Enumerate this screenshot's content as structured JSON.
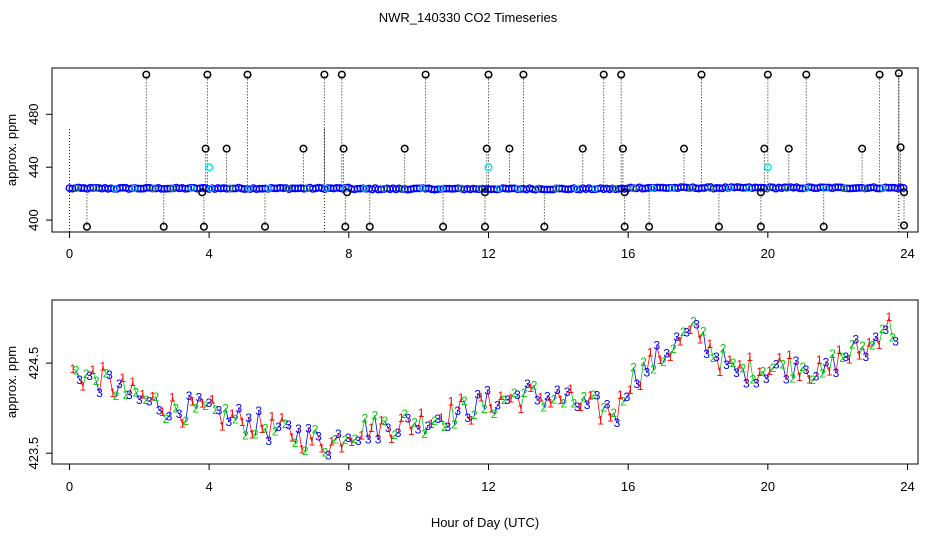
{
  "title": "NWR_140330  CO2 Timeseries",
  "colors": {
    "blue": "#0000ff",
    "cyan": "#00e5e5",
    "red": "#ff0000",
    "green": "#00cc00",
    "black": "#000000"
  },
  "chart_data": [
    {
      "type": "scatter",
      "name": "top-panel",
      "title": "NWR_140330  CO2 Timeseries",
      "xlabel": "",
      "ylabel": "approx. ppm",
      "xlim": [
        -0.5,
        24.3
      ],
      "ylim": [
        391,
        515
      ],
      "xticks": [
        "0",
        "4",
        "8",
        "12",
        "16",
        "20",
        "24"
      ],
      "yticks": [
        "400",
        "440",
        "480"
      ],
      "baseline_value": 424,
      "flag_points": [
        {
          "x": 0.5,
          "y": 395
        },
        {
          "x": 2.2,
          "y": 510
        },
        {
          "x": 2.7,
          "y": 395
        },
        {
          "x": 3.85,
          "y": 395
        },
        {
          "x": 3.9,
          "y": 454
        },
        {
          "x": 3.95,
          "y": 510
        },
        {
          "x": 4.5,
          "y": 454
        },
        {
          "x": 5.1,
          "y": 510
        },
        {
          "x": 5.6,
          "y": 395
        },
        {
          "x": 6.7,
          "y": 454
        },
        {
          "x": 7.3,
          "y": 510
        },
        {
          "x": 7.8,
          "y": 510
        },
        {
          "x": 7.85,
          "y": 454
        },
        {
          "x": 7.9,
          "y": 395
        },
        {
          "x": 8.6,
          "y": 395
        },
        {
          "x": 9.6,
          "y": 454
        },
        {
          "x": 10.2,
          "y": 510
        },
        {
          "x": 10.7,
          "y": 395
        },
        {
          "x": 11.9,
          "y": 395
        },
        {
          "x": 11.95,
          "y": 454
        },
        {
          "x": 12.0,
          "y": 510
        },
        {
          "x": 12.6,
          "y": 454
        },
        {
          "x": 13.0,
          "y": 510
        },
        {
          "x": 13.6,
          "y": 395
        },
        {
          "x": 14.7,
          "y": 454
        },
        {
          "x": 15.3,
          "y": 510
        },
        {
          "x": 15.8,
          "y": 510
        },
        {
          "x": 15.85,
          "y": 454
        },
        {
          "x": 15.9,
          "y": 395
        },
        {
          "x": 16.6,
          "y": 395
        },
        {
          "x": 17.6,
          "y": 454
        },
        {
          "x": 18.1,
          "y": 510
        },
        {
          "x": 18.6,
          "y": 395
        },
        {
          "x": 19.8,
          "y": 395
        },
        {
          "x": 19.9,
          "y": 454
        },
        {
          "x": 20.0,
          "y": 510
        },
        {
          "x": 20.6,
          "y": 454
        },
        {
          "x": 21.1,
          "y": 510
        },
        {
          "x": 21.6,
          "y": 395
        },
        {
          "x": 22.7,
          "y": 454
        },
        {
          "x": 23.2,
          "y": 510
        },
        {
          "x": 23.75,
          "y": 511
        },
        {
          "x": 23.8,
          "y": 455
        },
        {
          "x": 23.9,
          "y": 396
        },
        {
          "x": 3.8,
          "y": 421
        },
        {
          "x": 7.95,
          "y": 421
        },
        {
          "x": 11.9,
          "y": 421
        },
        {
          "x": 15.9,
          "y": 421
        },
        {
          "x": 19.8,
          "y": 421
        },
        {
          "x": 23.9,
          "y": 421
        }
      ],
      "spike_lines_to": [
        {
          "x": 0.0,
          "y": 470
        },
        {
          "x": 7.3,
          "y": 470
        },
        {
          "x": 23.75,
          "y": 511
        }
      ],
      "cyan_points": [
        {
          "x": 4.0,
          "y": 440
        },
        {
          "x": 12.0,
          "y": 440
        },
        {
          "x": 20.0,
          "y": 440
        }
      ]
    },
    {
      "type": "scatter",
      "name": "bottom-panel",
      "xlabel": "Hour of Day (UTC)",
      "ylabel": "approx. ppm",
      "xlim": [
        -0.5,
        24.3
      ],
      "ylim": [
        423.38,
        425.2
      ],
      "xticks": [
        "0",
        "4",
        "8",
        "12",
        "16",
        "20",
        "24"
      ],
      "yticks": [
        "423.5",
        "424.5"
      ],
      "series": [
        {
          "name": "1",
          "color": "#ff0000",
          "symbol": "1"
        },
        {
          "name": "2",
          "color": "#00cc00",
          "symbol": "2"
        },
        {
          "name": "3",
          "color": "#0000ff",
          "symbol": "3"
        }
      ],
      "trend": {
        "x": [
          0,
          1,
          2,
          3,
          4,
          5,
          6,
          7,
          7.5,
          8,
          9,
          10,
          11,
          12,
          13,
          14,
          15,
          15.7,
          16,
          17,
          17.5,
          18,
          18.5,
          19,
          20,
          21,
          21.6,
          22,
          23,
          23.3,
          23.8
        ],
        "y": [
          424.4,
          424.3,
          424.1,
          424.0,
          423.95,
          423.85,
          423.75,
          423.65,
          423.6,
          423.75,
          423.8,
          423.85,
          423.95,
          424.05,
          424.15,
          424.1,
          424.0,
          423.95,
          424.3,
          424.6,
          424.75,
          424.85,
          424.6,
          424.4,
          424.45,
          424.5,
          424.35,
          424.55,
          424.7,
          424.95,
          424.8
        ]
      }
    }
  ]
}
